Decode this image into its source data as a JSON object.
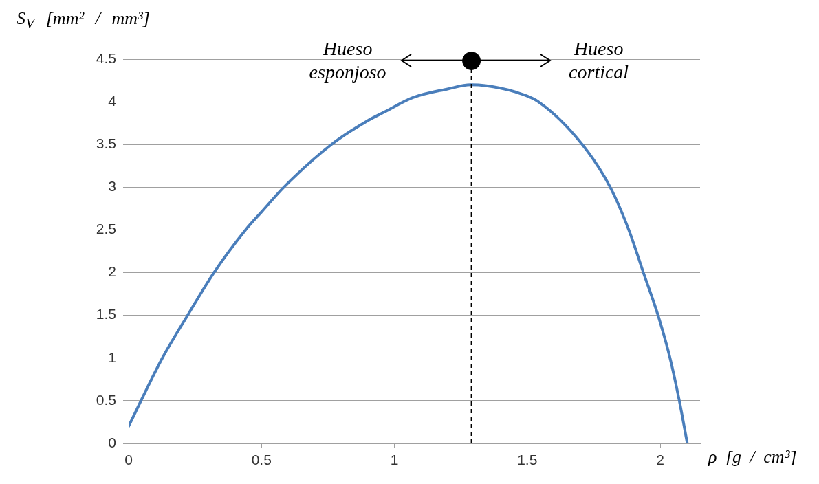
{
  "chart_data": {
    "type": "line",
    "xlabel": "ρ [g / cm³]",
    "ylabel": "S$_{V}$ [mm² / mm³]",
    "xlim": [
      0,
      2.15
    ],
    "xticks": [
      0,
      0.5,
      1,
      1.5,
      2
    ],
    "ylim": [
      0,
      4.5
    ],
    "yticks": [
      0,
      0.5,
      1,
      1.5,
      2,
      2.5,
      3,
      3.5,
      4,
      4.5
    ],
    "grid": "y",
    "legend": false,
    "series": [
      {
        "color": "#4a7ebb",
        "marker": "none",
        "line_style": "solid",
        "x": [
          0,
          0.127,
          0.222,
          0.321,
          0.44,
          0.5,
          0.584,
          0.763,
          0.9,
          0.962,
          1.07,
          1.2,
          1.287,
          1.342,
          1.45,
          1.542,
          1.707,
          1.812,
          1.882,
          1.937,
          1.992,
          2.037,
          2.072,
          2.102
        ],
        "values": [
          0.2,
          1.0,
          1.5,
          2.0,
          2.5,
          2.71,
          3.0,
          3.5,
          3.78,
          3.88,
          4.05,
          4.15,
          4.2,
          4.19,
          4.12,
          4.0,
          3.5,
          3.0,
          2.5,
          2.0,
          1.5,
          1.0,
          0.5,
          0
        ]
      },
      {
        "type": "scatter",
        "color": "#000000",
        "marker": "circle",
        "x": [
          1.29
        ],
        "values": [
          4.48
        ]
      }
    ],
    "ref_lines": [
      {
        "axis": "x",
        "value": 1.29,
        "color": "#000000",
        "line_style": "dashed"
      }
    ],
    "annotations": [
      "Hueso esponjoso",
      "Hueso cortical"
    ]
  }
}
